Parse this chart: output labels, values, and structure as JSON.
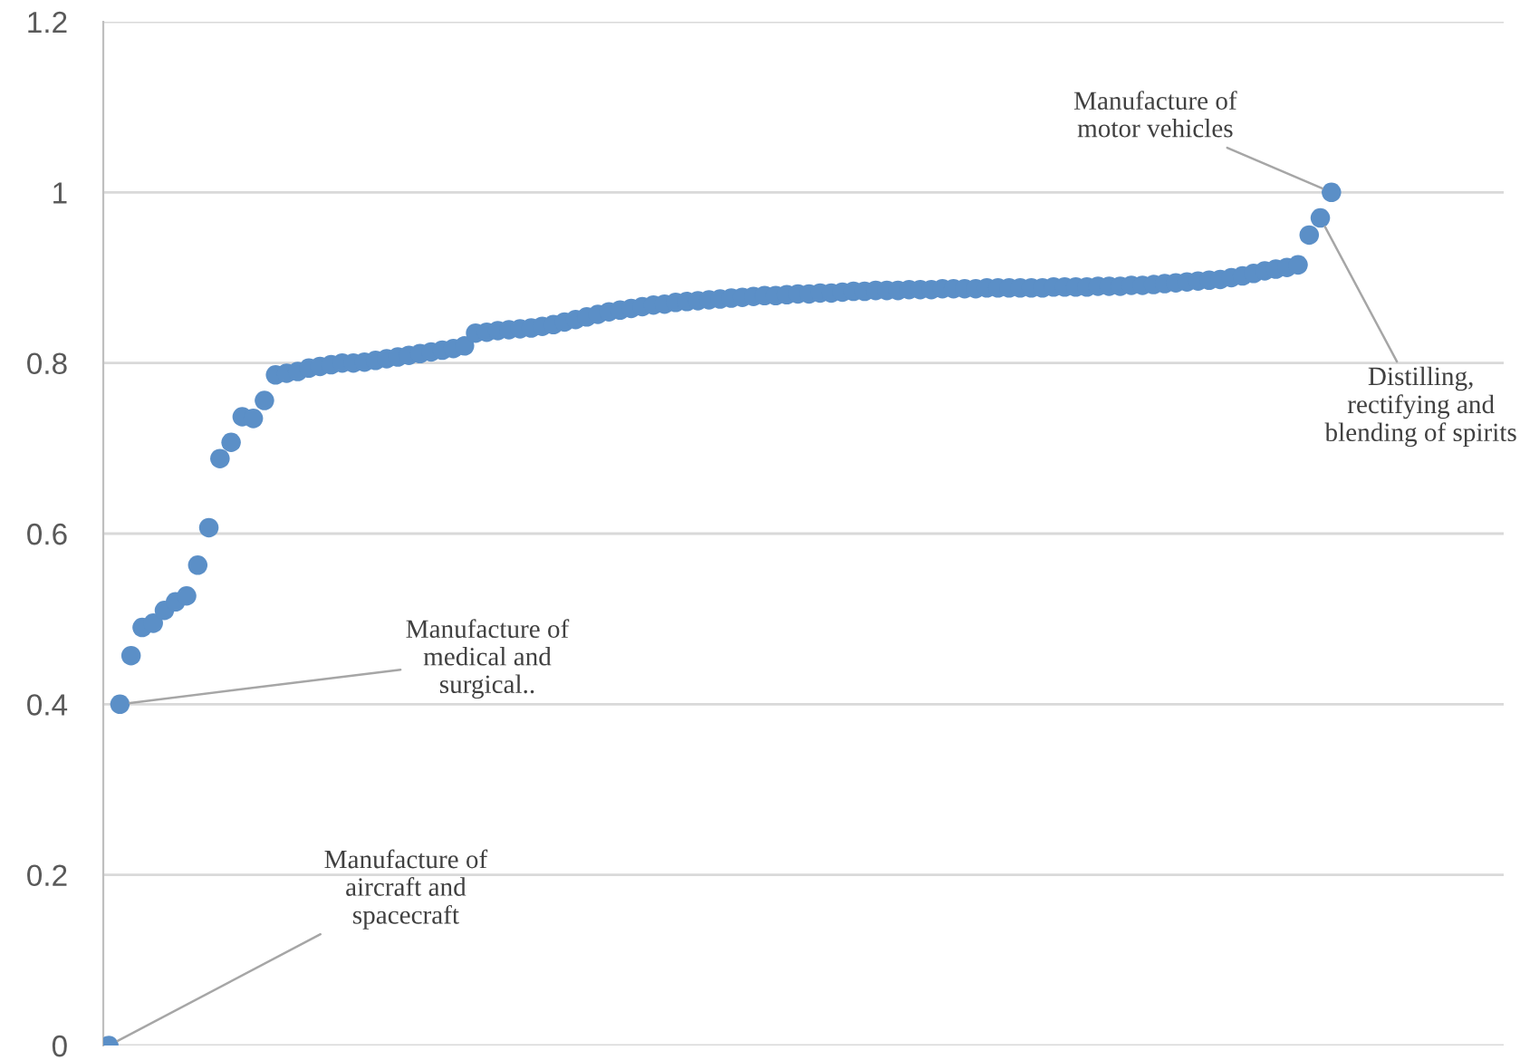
{
  "chart_data": {
    "type": "scatter",
    "categories": [
      null,
      null,
      null,
      null,
      null,
      null,
      null,
      null,
      null,
      null,
      null,
      null,
      null,
      null,
      null,
      null,
      null,
      null,
      null,
      null,
      null,
      null,
      null,
      null,
      null,
      null,
      null,
      null,
      null,
      null,
      null,
      null,
      null,
      null,
      null,
      null,
      null,
      null,
      null,
      null,
      null,
      null,
      null,
      null,
      null,
      null,
      null,
      null,
      null,
      null,
      null,
      null,
      null,
      null,
      null,
      null,
      null,
      null,
      null,
      null,
      null,
      null,
      null,
      null,
      null,
      null,
      null,
      null,
      null,
      null,
      null,
      null,
      null,
      null,
      null,
      null,
      null,
      null,
      null,
      null,
      null,
      null,
      null,
      null,
      null,
      null,
      null,
      null,
      null,
      null,
      null,
      null,
      null,
      null,
      null,
      null,
      null,
      null,
      null,
      null,
      null,
      null,
      null,
      null,
      null,
      null,
      null,
      null,
      null,
      null,
      null,
      null,
      null,
      null,
      null,
      null,
      null,
      null,
      null,
      null,
      null,
      null,
      null,
      null,
      null,
      null
    ],
    "series": [
      {
        "color": "#5b8fc7",
        "values": [
          0,
          0.4,
          0.457,
          0.49,
          0.495,
          0.51,
          0.52,
          0.527,
          0.563,
          0.607,
          0.688,
          0.707,
          0.737,
          0.735,
          0.756,
          0.786,
          0.788,
          0.79,
          0.794,
          0.796,
          0.798,
          0.8,
          0.8,
          0.801,
          0.803,
          0.805,
          0.807,
          0.809,
          0.811,
          0.813,
          0.815,
          0.817,
          0.82,
          0.835,
          0.836,
          0.838,
          0.839,
          0.84,
          0.841,
          0.843,
          0.845,
          0.848,
          0.851,
          0.854,
          0.857,
          0.86,
          0.862,
          0.864,
          0.866,
          0.868,
          0.869,
          0.871,
          0.872,
          0.873,
          0.874,
          0.875,
          0.876,
          0.877,
          0.878,
          0.879,
          0.879,
          0.88,
          0.881,
          0.881,
          0.882,
          0.882,
          0.883,
          0.884,
          0.884,
          0.885,
          0.885,
          0.885,
          0.886,
          0.886,
          0.886,
          0.887,
          0.887,
          0.887,
          0.887,
          0.888,
          0.888,
          0.888,
          0.888,
          0.888,
          0.888,
          0.889,
          0.889,
          0.889,
          0.889,
          0.89,
          0.89,
          0.89,
          0.891,
          0.891,
          0.892,
          0.893,
          0.894,
          0.895,
          0.896,
          0.897,
          0.898,
          0.9,
          0.902,
          0.905,
          0.908,
          0.91,
          0.912,
          0.915,
          0.95,
          0.97,
          1.0,
          null,
          null,
          null,
          null,
          null,
          null,
          null,
          null,
          null,
          null,
          null,
          null,
          null,
          null,
          null
        ]
      }
    ],
    "ylim": [
      0,
      1.2
    ],
    "yticks": [
      0,
      0.2,
      0.4,
      0.6,
      0.8,
      1,
      1.2
    ],
    "grid": "y",
    "tick_labels": "y",
    "marker": "circle",
    "annotations": [
      "Manufacture of\naircraft and\nspacecraft",
      "Manufacture of\nmedical and\nsurgical..",
      "Manufacture of\nmotor vehicles",
      "Distilling,\nrectifying and\nblending of spirits"
    ]
  }
}
